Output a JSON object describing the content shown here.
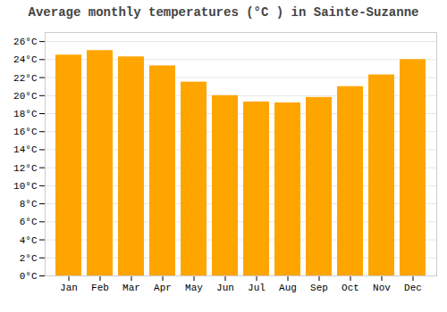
{
  "chart_data": {
    "type": "bar",
    "title": "Average monthly temperatures (°C ) in Sainte-Suzanne",
    "categories": [
      "Jan",
      "Feb",
      "Mar",
      "Apr",
      "May",
      "Jun",
      "Jul",
      "Aug",
      "Sep",
      "Oct",
      "Nov",
      "Dec"
    ],
    "values": [
      24.5,
      25.0,
      24.3,
      23.3,
      21.5,
      20.0,
      19.3,
      19.2,
      19.8,
      21.0,
      22.3,
      24.0
    ],
    "color": "#FFA500",
    "ylim": [
      0,
      27
    ],
    "yticks": [
      {
        "value": 0,
        "label": "0°C"
      },
      {
        "value": 2,
        "label": "2°C"
      },
      {
        "value": 4,
        "label": "4°C"
      },
      {
        "value": 6,
        "label": "6°C"
      },
      {
        "value": 8,
        "label": "8°C"
      },
      {
        "value": 10,
        "label": "10°C"
      },
      {
        "value": 12,
        "label": "12°C"
      },
      {
        "value": 14,
        "label": "14°C"
      },
      {
        "value": 16,
        "label": "16°C"
      },
      {
        "value": 18,
        "label": "18°C"
      },
      {
        "value": 20,
        "label": "20°C"
      },
      {
        "value": 22,
        "label": "22°C"
      },
      {
        "value": 24,
        "label": "24°C"
      },
      {
        "value": 26,
        "label": "26°C"
      }
    ],
    "grid": true
  }
}
